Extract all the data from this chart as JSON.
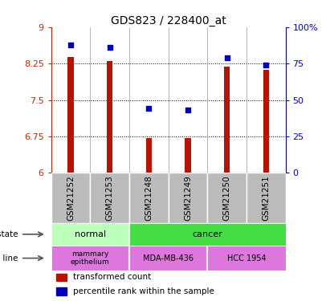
{
  "title": "GDS823 / 228400_at",
  "samples": [
    "GSM21252",
    "GSM21253",
    "GSM21248",
    "GSM21249",
    "GSM21250",
    "GSM21251"
  ],
  "transformed_counts": [
    8.38,
    8.3,
    6.72,
    6.71,
    8.18,
    8.12
  ],
  "percentile_ranks": [
    88,
    86,
    44,
    43,
    79,
    74
  ],
  "ylim_left": [
    6,
    9
  ],
  "ylim_right": [
    0,
    100
  ],
  "yticks_left": [
    6,
    6.75,
    7.5,
    8.25,
    9
  ],
  "yticks_right": [
    0,
    25,
    50,
    75,
    100
  ],
  "ytick_labels_left": [
    "6",
    "6.75",
    "7.5",
    "8.25",
    "9"
  ],
  "ytick_labels_right": [
    "0",
    "25",
    "50",
    "75",
    "100%"
  ],
  "bar_color": "#bb1100",
  "dot_color": "#0000bb",
  "bar_bottom": 6,
  "normal_color": "#bbffbb",
  "cancer_color": "#44dd44",
  "cell_color": "#dd77dd",
  "left_axis_color": "#cc2200",
  "right_axis_color": "#0000cc",
  "grid_color": "#000000",
  "xtick_bg": "#bbbbbb",
  "fig_width": 4.11,
  "fig_height": 3.75,
  "bar_width": 0.15
}
